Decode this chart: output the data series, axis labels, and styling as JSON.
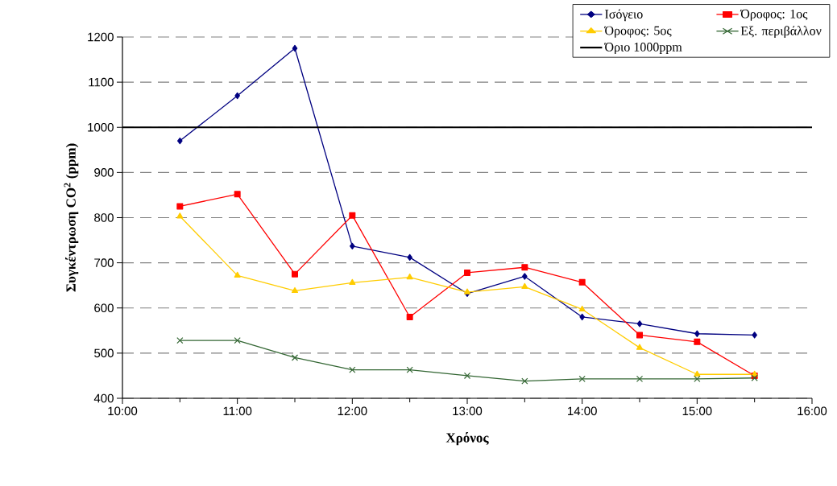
{
  "chart_data": {
    "type": "line",
    "xlabel": "Χρόνος",
    "ylabel": "Συγκέντρωση CO$^{2}$ (ppm)",
    "x": [
      10.5,
      11,
      11.5,
      12,
      12.5,
      13,
      13.5,
      14,
      14.5,
      15,
      15.5
    ],
    "xlim": [
      10,
      16
    ],
    "xticks": [
      {
        "value": 10,
        "label": "10:00"
      },
      {
        "value": 11,
        "label": "11:00"
      },
      {
        "value": 12,
        "label": "12:00"
      },
      {
        "value": 13,
        "label": "13:00"
      },
      {
        "value": 14,
        "label": "14:00"
      },
      {
        "value": 15,
        "label": "15:00"
      },
      {
        "value": 16,
        "label": "16:00"
      }
    ],
    "ylim": [
      400,
      1200
    ],
    "yticks": [
      400,
      500,
      600,
      700,
      800,
      900,
      1000,
      1100,
      1200
    ],
    "grid": "y",
    "legend": "top right",
    "line_style": "solid",
    "series": [
      {
        "name": "Ισόγειο",
        "color": "#000080",
        "marker": "diamond",
        "values": [
          970,
          1070,
          1175,
          737,
          712,
          632,
          670,
          580,
          565,
          543,
          540
        ]
      },
      {
        "name": "Όροφος: 1ος",
        "color": "#ff0000",
        "marker": "square",
        "values": [
          825,
          852,
          675,
          805,
          580,
          678,
          690,
          657,
          540,
          525,
          450
        ]
      },
      {
        "name": "Όροφος: 5ος",
        "color": "#ffcc00",
        "marker": "triangle",
        "values": [
          803,
          672,
          638,
          656,
          668,
          635,
          647,
          597,
          512,
          453,
          453
        ]
      },
      {
        "name": "Εξ. περιβάλλον",
        "color": "#336633",
        "marker": "cross",
        "values": [
          528,
          528,
          490,
          463,
          463,
          450,
          438,
          443,
          443,
          443,
          445
        ]
      }
    ],
    "ref_lines": [
      {
        "axis": "y",
        "value": 1000,
        "label": "Όριο 1000ppm",
        "color": "#000000",
        "line_style": "solid"
      }
    ]
  }
}
